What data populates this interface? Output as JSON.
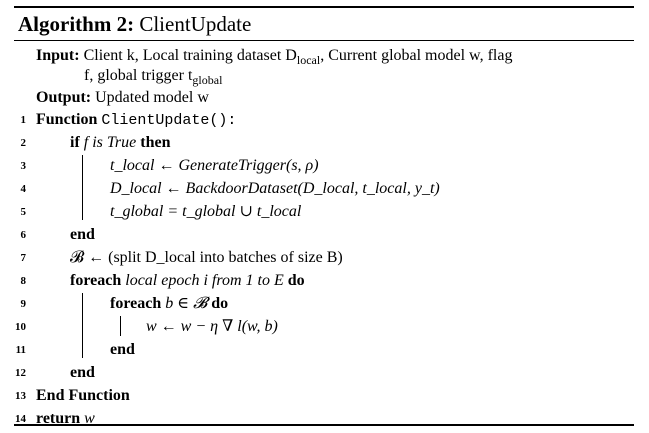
{
  "algorithm": {
    "label": "Algorithm 2:",
    "name": "ClientUpdate",
    "input_label": "Input:",
    "input_line1": "Client k, Local training dataset D",
    "input_line1_sub": "local",
    "input_line1_rest": ", Current global model w, flag",
    "input_line2": "f, global trigger t",
    "input_line2_sub": "global",
    "output_label": "Output:",
    "output_text": "Updated model w",
    "lines": [
      {
        "num": "1",
        "kw": "Function",
        "text": "ClientUpdate():"
      },
      {
        "num": "2",
        "kw": "if",
        "text": "f is True",
        "kw2": "then"
      },
      {
        "num": "3",
        "text": "t_local ← GenerateTrigger(s, ρ)"
      },
      {
        "num": "4",
        "text": "D_local ← BackdoorDataset(D_local, t_local, y_t)"
      },
      {
        "num": "5",
        "text": "t_global = t_global ∪ t_local"
      },
      {
        "num": "6",
        "kw": "end"
      },
      {
        "num": "7",
        "text": "𝓑 ← (split D_local into batches of size B)"
      },
      {
        "num": "8",
        "kw": "foreach",
        "text": "local epoch i from 1 to E",
        "kw2": "do"
      },
      {
        "num": "9",
        "kw": "foreach",
        "text": "b ∈ 𝓑",
        "kw2": "do"
      },
      {
        "num": "10",
        "text": "w ← w − η ∇ l(w, b)"
      },
      {
        "num": "11",
        "kw": "end"
      },
      {
        "num": "12",
        "kw": "end"
      },
      {
        "num": "13",
        "kw": "End Function"
      },
      {
        "num": "14",
        "kw": "return",
        "text": "w"
      }
    ]
  }
}
